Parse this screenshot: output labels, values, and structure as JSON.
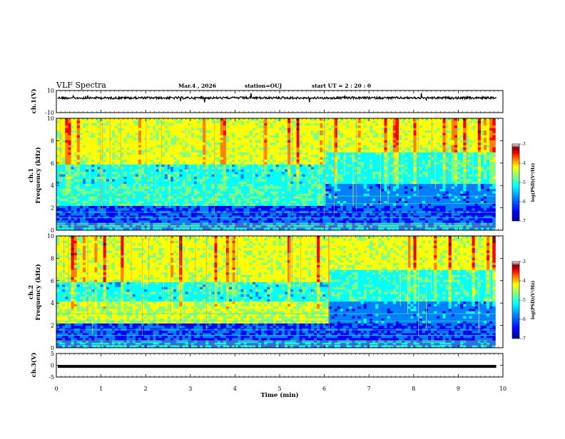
{
  "header": {
    "title": "VLF Spectra",
    "date": "Mar.4 , 2026",
    "station": "station=OUJ",
    "start_ut": "start UT = 2 : 20 : 0"
  },
  "chart_data": [
    {
      "type": "line",
      "name": "ch1-waveform",
      "ylabel": "ch.1(V)",
      "ylim": [
        -10,
        10
      ],
      "yticks": [
        "10",
        "-10"
      ],
      "x": [
        0,
        10
      ],
      "baseline_value": 3.3,
      "color": "#000000"
    },
    {
      "type": "heatmap",
      "name": "ch1-spectrogram",
      "ylabel_line1": "ch.1",
      "ylabel_line2": "Frequency (kHz)",
      "ylim": [
        0,
        10
      ],
      "yticks": [
        "0",
        "2",
        "4",
        "6",
        "8",
        "10"
      ],
      "xlim": [
        0,
        9.83
      ],
      "transition_min": 6.0,
      "colorbar": {
        "label": "log(PSD)(V²/Hz)",
        "range": [
          -7,
          -3
        ],
        "ticks": [
          "-3",
          "-4",
          "-5",
          "-6",
          "-7"
        ]
      }
    },
    {
      "type": "heatmap",
      "name": "ch2-spectrogram",
      "ylabel_line1": "ch.2",
      "ylabel_line2": "Frequency (kHz)",
      "ylim": [
        0,
        10
      ],
      "yticks": [
        "0",
        "2",
        "4",
        "6",
        "8",
        "10"
      ],
      "xlim": [
        0,
        9.83
      ],
      "transition_min": 6.1,
      "colorbar": {
        "label": "log(PSD)(V²/Hz)",
        "range": [
          -7,
          -3
        ],
        "ticks": [
          "-3",
          "-4",
          "-5",
          "-6",
          "-7"
        ]
      }
    },
    {
      "type": "line",
      "name": "ch3-waveform",
      "ylabel": "ch.3(V)",
      "ylim": [
        -5,
        5
      ],
      "yticks": [
        "5",
        "0",
        "-5"
      ],
      "x": [
        0,
        10
      ],
      "baseline_value": -0.5,
      "color": "#000000"
    }
  ],
  "xaxis": {
    "label": "Time (min)",
    "range": [
      0,
      10
    ],
    "ticks": [
      "0",
      "1",
      "2",
      "3",
      "4",
      "5",
      "6",
      "7",
      "8",
      "9",
      "10"
    ]
  },
  "colors": {
    "colormap": [
      "#00008f",
      "#0000ff",
      "#0080ff",
      "#00ffff",
      "#80ff80",
      "#ffff00",
      "#ff8000",
      "#ff0000",
      "#800000",
      "#ffffff"
    ]
  }
}
